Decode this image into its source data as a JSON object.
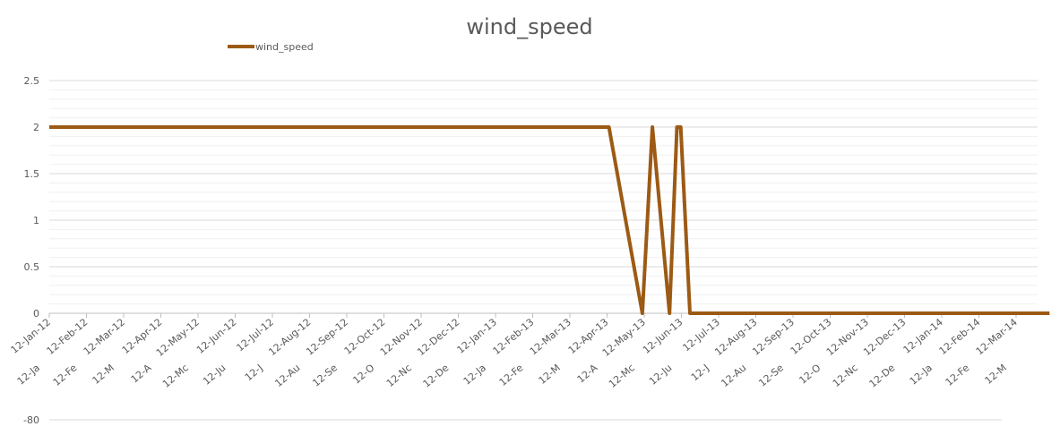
{
  "chart_data": {
    "type": "line",
    "title": "wind_speed",
    "xlabel": "",
    "ylabel": "",
    "ylim": [
      0,
      2.5
    ],
    "y_ticks": [
      0,
      0.5,
      1,
      1.5,
      2,
      2.5
    ],
    "grid": true,
    "legend_position": "top-left",
    "x_tick_labels": [
      "12-Jan-12",
      "12-Feb-12",
      "12-Mar-12",
      "12-Apr-12",
      "12-May-12",
      "12-Jun-12",
      "12-Jul-12",
      "12-Aug-12",
      "12-Sep-12",
      "12-Oct-12",
      "12-Nov-12",
      "12-Dec-12",
      "12-Jan-13",
      "12-Feb-13",
      "12-Mar-13",
      "12-Apr-13",
      "12-May-13",
      "12-Jun-13",
      "12-Jul-13",
      "12-Aug-13",
      "12-Sep-13",
      "12-Oct-13",
      "12-Nov-13",
      "12-Dec-13",
      "12-Jan-14",
      "12-Feb-14",
      "12-Mar-14"
    ],
    "x_tick_labels_secondary": [
      "12-Ja",
      "12-Fe",
      "12-M",
      "12-A",
      "12-Mc",
      "12-Ju",
      "12-J",
      "12-Au",
      "12-Se",
      "12-O",
      "12-Nc",
      "12-De",
      "12-Ja",
      "12-Fe",
      "12-M",
      "12-A",
      "12-Mc",
      "12-Ju",
      "12-J",
      "12-Au",
      "12-Se",
      "12-O",
      "12-Nc",
      "12-De",
      "12-Ja",
      "12-Fe",
      "12-M"
    ],
    "lower_axis_label": "-80",
    "series": [
      {
        "name": "wind_speed",
        "color": "#9c5a14",
        "x": [
          "12-Jan-12",
          "12-Mar-13 +28d",
          "12-Apr-13 +25d",
          "12-May-13",
          "12-May-13 +8d",
          "12-May-13 +12d",
          "12-May-13 +14d",
          "12-May-13 +17d",
          "12-Mar-14 +28d"
        ],
        "x_index": [
          0,
          15.05,
          15.95,
          16.22,
          16.68,
          16.88,
          16.98,
          17.23,
          26.9
        ],
        "values": [
          2,
          2,
          0,
          2,
          0,
          2,
          2,
          0,
          0
        ]
      }
    ]
  }
}
